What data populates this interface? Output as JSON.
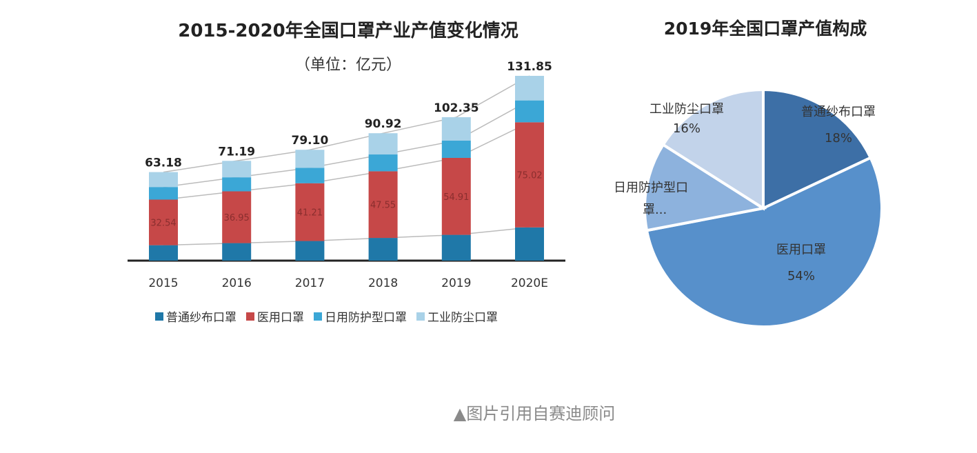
{
  "chart_data": [
    {
      "type": "bar",
      "stacked": true,
      "title": "2015-2020年全国口罩产业产值变化情况",
      "subtitle": "（单位：亿元）",
      "categories": [
        "2015",
        "2016",
        "2017",
        "2018",
        "2019",
        "2020E"
      ],
      "totals": [
        "63.18",
        "71.19",
        "79.10",
        "90.92",
        "102.35",
        "131.85"
      ],
      "series": [
        {
          "name": "普通纱布口罩",
          "color": "#1f78a8",
          "values": [
            11.0,
            12.5,
            14.0,
            16.2,
            18.4,
            23.7
          ]
        },
        {
          "name": "医用口罩",
          "color": "#c64848",
          "values": [
            32.54,
            36.95,
            41.21,
            47.55,
            54.91,
            75.02
          ],
          "labels": [
            "32.54",
            "36.95",
            "41.21",
            "47.55",
            "54.91",
            "75.02"
          ]
        },
        {
          "name": "日用防护型口罩",
          "color": "#3ba7d6",
          "values": [
            9.0,
            10.0,
            11.0,
            12.0,
            12.3,
            15.6
          ]
        },
        {
          "name": "工业防尘口罩",
          "color": "#a9d2e8",
          "values": [
            10.64,
            11.74,
            12.89,
            15.17,
            16.74,
            17.53
          ]
        }
      ],
      "grid": false,
      "legend": "bottom"
    },
    {
      "type": "pie",
      "title": "2019年全国口罩产值构成",
      "slices": [
        {
          "label": "普通纱布口罩",
          "pct_label": "18%",
          "value": 18,
          "color": "#3d6fa6"
        },
        {
          "label": "医用口罩",
          "pct_label": "54%",
          "value": 54,
          "color": "#5790cb"
        },
        {
          "label": "日用防护型口罩...",
          "value": 12,
          "color": "#8db2dd",
          "label_lines": [
            "日用防护型口",
            "罩..."
          ]
        },
        {
          "label": "工业防尘口罩",
          "pct_label": "16%",
          "value": 16,
          "color": "#c2d3ea"
        }
      ]
    }
  ],
  "caption": "▲图片引用自赛迪顾问"
}
